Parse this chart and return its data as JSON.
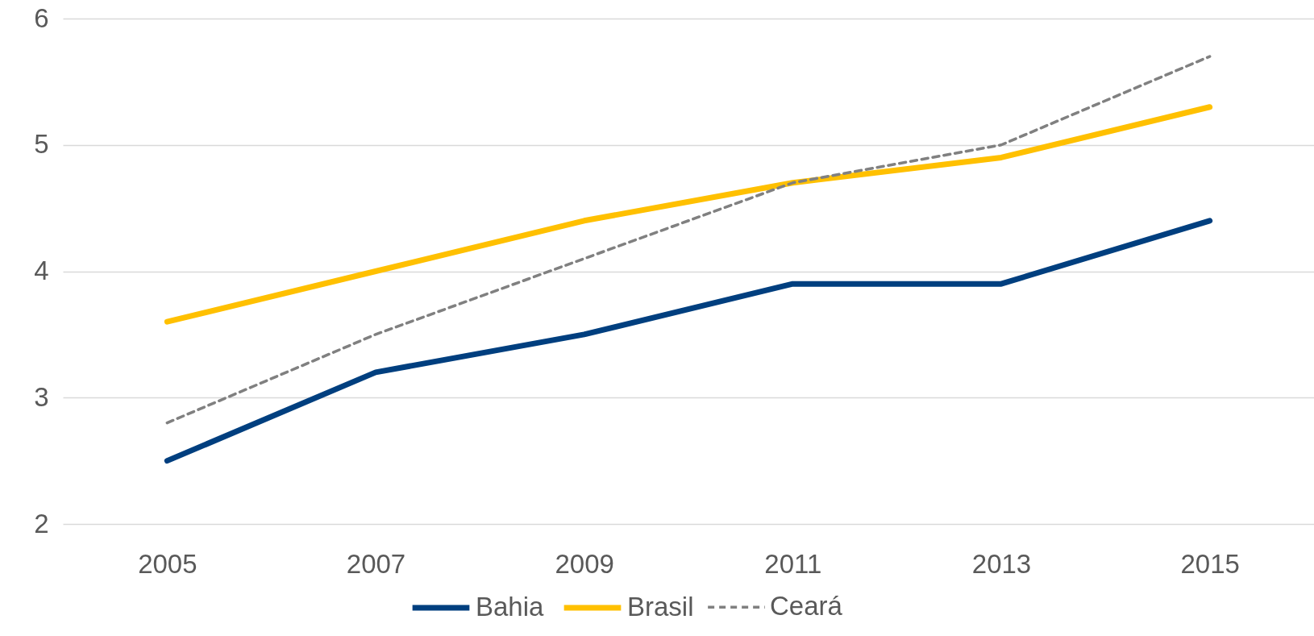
{
  "chart_data": {
    "type": "line",
    "categories": [
      "2005",
      "2007",
      "2009",
      "2011",
      "2013",
      "2015"
    ],
    "series": [
      {
        "name": "Bahia",
        "color": "#003f7f",
        "values": [
          2.5,
          3.2,
          3.5,
          3.9,
          3.9,
          4.4
        ],
        "line_style": "solid"
      },
      {
        "name": "Brasil",
        "color": "#ffc000",
        "values": [
          3.6,
          4.0,
          4.4,
          4.7,
          4.9,
          5.3
        ],
        "line_style": "solid"
      },
      {
        "name": "Ceará",
        "color": "#808080",
        "values": [
          2.8,
          3.5,
          4.1,
          4.7,
          5.0,
          5.7
        ],
        "line_style": "dashed"
      }
    ],
    "ylim": [
      2,
      6
    ],
    "yticks": [
      2,
      3,
      4,
      5,
      6
    ],
    "grid": "y",
    "legend": "bottom",
    "marker": "none"
  }
}
